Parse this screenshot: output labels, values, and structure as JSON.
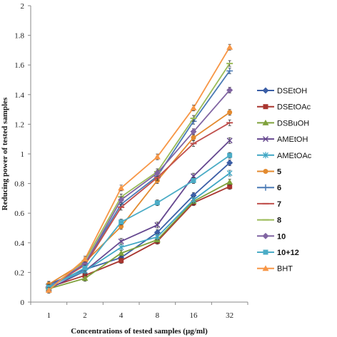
{
  "chart_data": {
    "type": "line",
    "title": "",
    "xlabel": "Concentrations of tested samples (µg/ml)",
    "ylabel": "Reducing power of tested samples",
    "categories": [
      "1",
      "2",
      "4",
      "8",
      "16",
      "32"
    ],
    "ylim": [
      0,
      2
    ],
    "yticks": [
      "0",
      "0.2",
      "0.4",
      "0.6",
      "0.8",
      "1",
      "1.2",
      "1.4",
      "1.6",
      "1.8",
      "2"
    ],
    "grid": false,
    "legend_position": "right",
    "series": [
      {
        "name": "DSEtOH",
        "color": "#3b5ea6",
        "marker": "diamond",
        "bold": false,
        "values": [
          0.12,
          0.22,
          0.3,
          0.47,
          0.72,
          0.94
        ]
      },
      {
        "name": "DSEtOAc",
        "color": "#a9352f",
        "marker": "square",
        "bold": false,
        "values": [
          0.1,
          0.18,
          0.28,
          0.41,
          0.67,
          0.78
        ]
      },
      {
        "name": "DSBuOH",
        "color": "#7fa13c",
        "marker": "triangle",
        "bold": false,
        "values": [
          0.09,
          0.16,
          0.33,
          0.42,
          0.68,
          0.81
        ]
      },
      {
        "name": "AMEtOH",
        "color": "#65478f",
        "marker": "x",
        "bold": false,
        "values": [
          0.09,
          0.21,
          0.41,
          0.52,
          0.85,
          1.09
        ]
      },
      {
        "name": "AMEtOAc",
        "color": "#3fa6c4",
        "marker": "star",
        "bold": false,
        "values": [
          0.11,
          0.21,
          0.37,
          0.44,
          0.69,
          0.87
        ]
      },
      {
        "name": "5",
        "color": "#e38a2f",
        "marker": "circle",
        "bold": true,
        "values": [
          0.12,
          0.27,
          0.51,
          0.82,
          1.11,
          1.28
        ]
      },
      {
        "name": "6",
        "color": "#4a7ab5",
        "marker": "plus",
        "bold": true,
        "values": [
          0.1,
          0.26,
          0.66,
          0.85,
          1.22,
          1.56
        ]
      },
      {
        "name": "7",
        "color": "#c0504d",
        "marker": "dash",
        "bold": true,
        "values": [
          0.1,
          0.25,
          0.64,
          0.84,
          1.07,
          1.21
        ]
      },
      {
        "name": "8",
        "color": "#9bbb59",
        "marker": "dash",
        "bold": true,
        "values": [
          0.09,
          0.28,
          0.71,
          0.88,
          1.24,
          1.61
        ]
      },
      {
        "name": "10",
        "color": "#8064a2",
        "marker": "diamond",
        "bold": true,
        "values": [
          0.1,
          0.26,
          0.69,
          0.87,
          1.15,
          1.43
        ]
      },
      {
        "name": "10+12",
        "color": "#4bacc6",
        "marker": "square",
        "bold": true,
        "values": [
          0.1,
          0.23,
          0.54,
          0.67,
          0.82,
          0.99
        ]
      },
      {
        "name": "BHT",
        "color": "#f79646",
        "marker": "triangle",
        "bold": false,
        "values": [
          0.08,
          0.29,
          0.77,
          0.98,
          1.31,
          1.72
        ]
      }
    ]
  }
}
